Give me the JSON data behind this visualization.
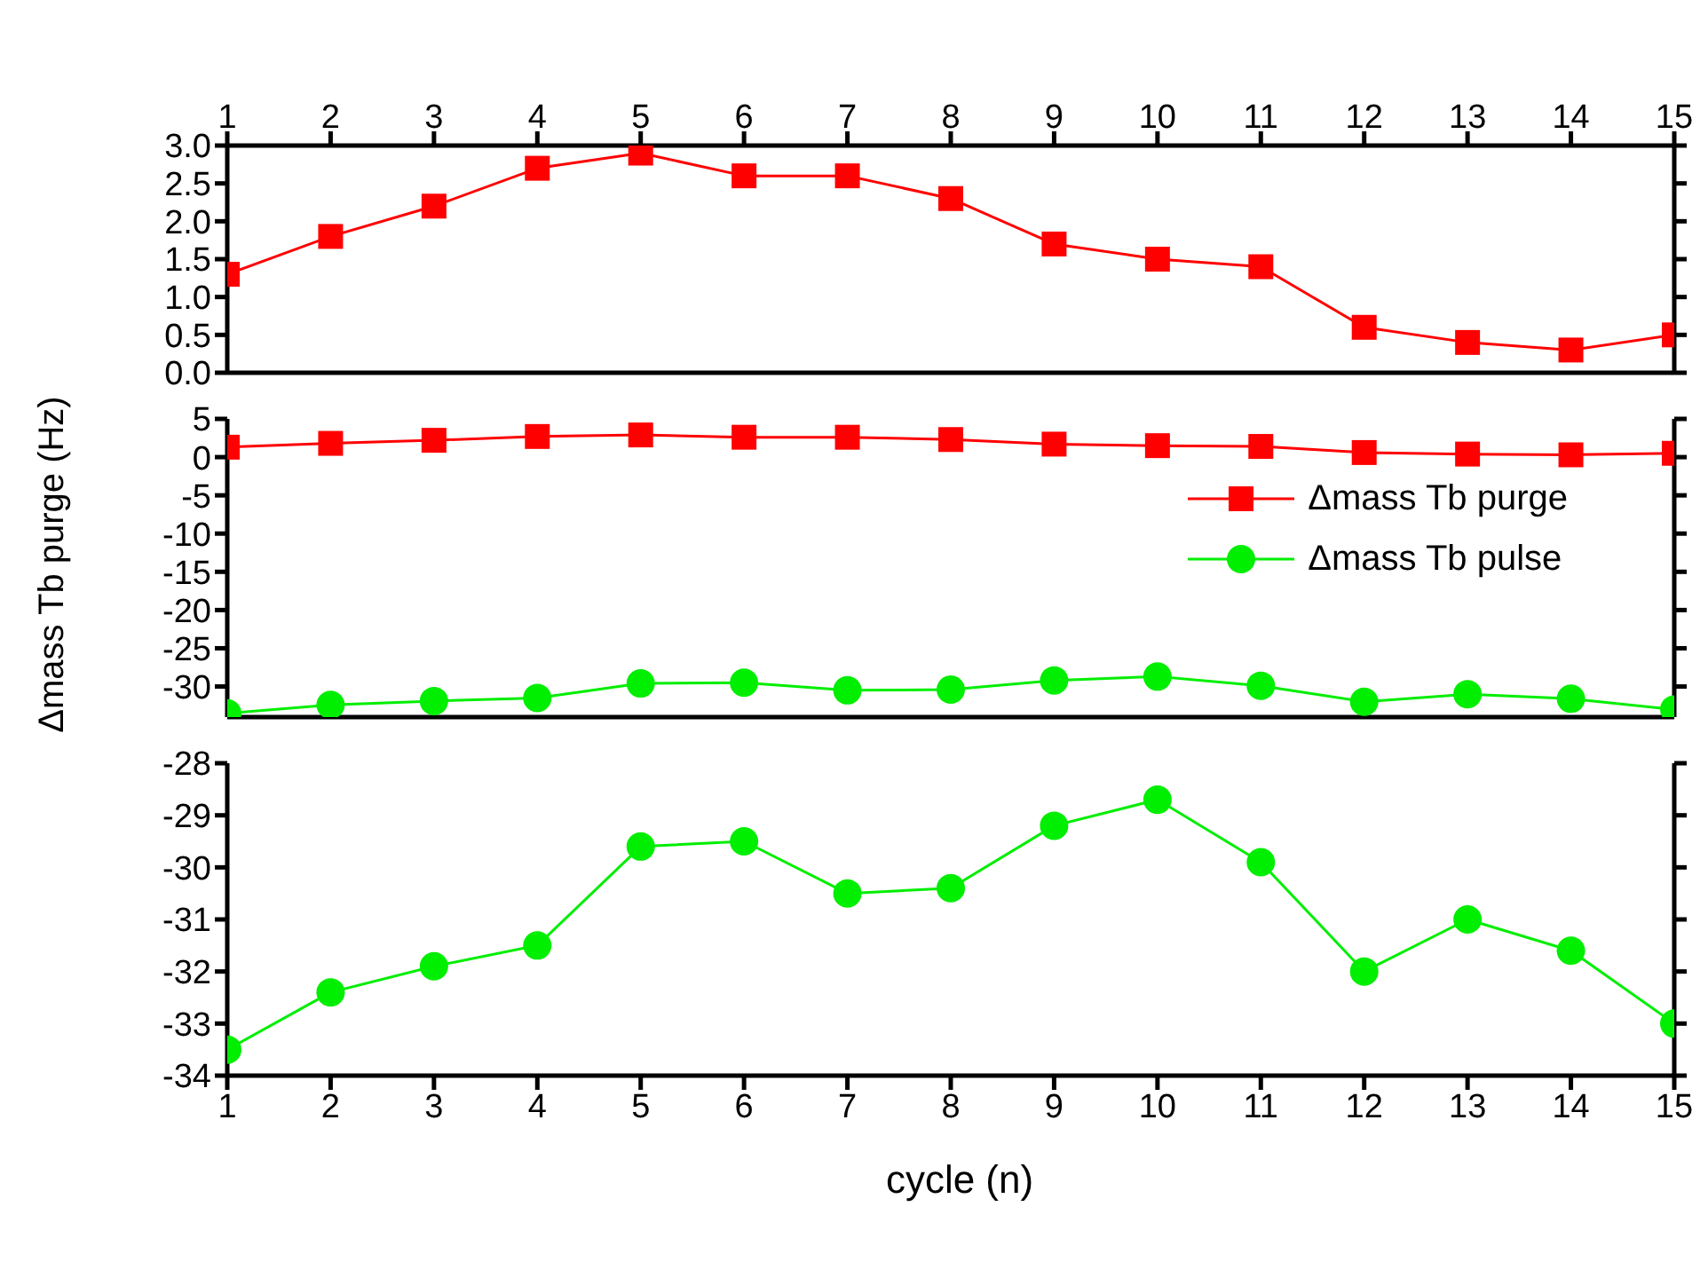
{
  "chart_data": [
    {
      "type": "line",
      "xlim": [
        1,
        15
      ],
      "x2lim": [
        1,
        15
      ],
      "x2ticks": [
        1,
        2,
        3,
        4,
        5,
        6,
        7,
        8,
        9,
        10,
        11,
        12,
        13,
        14,
        15
      ],
      "x": [
        1,
        2,
        3,
        4,
        5,
        6,
        7,
        8,
        9,
        10,
        11,
        12,
        13,
        14,
        15
      ],
      "ylim": [
        0,
        3
      ],
      "yticks": [
        {
          "value": 0,
          "label": "0.0"
        },
        {
          "value": 0.5,
          "label": "0.5"
        },
        {
          "value": 1,
          "label": "1.0"
        },
        {
          "value": 1.5,
          "label": "1.5"
        },
        {
          "value": 2,
          "label": "2.0"
        },
        {
          "value": 2.5,
          "label": "2.5"
        },
        {
          "value": 3,
          "label": "3.0"
        }
      ],
      "grid": false,
      "legend": false,
      "series": [
        {
          "color": "#ff0000",
          "marker": "square",
          "values": [
            1.3,
            1.8,
            2.2,
            2.7,
            2.9,
            2.6,
            2.6,
            2.3,
            1.7,
            1.5,
            1.4,
            0.6,
            0.4,
            0.3,
            0.5
          ]
        }
      ]
    },
    {
      "type": "line",
      "ylabel": "Δmass Tb purge (Hz)",
      "xlim": [
        1,
        15
      ],
      "xticks": [
        1,
        2,
        3,
        4,
        5,
        6,
        7,
        8,
        9,
        10,
        11,
        12,
        13,
        14,
        15
      ],
      "tick_labels": "y",
      "x": [
        1,
        2,
        3,
        4,
        5,
        6,
        7,
        8,
        9,
        10,
        11,
        12,
        13,
        14,
        15
      ],
      "ylim": [
        -34,
        5
      ],
      "yticks": [
        5,
        0,
        -5,
        -10,
        -15,
        -20,
        -25,
        -30
      ],
      "grid": false,
      "legend": "top right",
      "series": [
        {
          "name": "Δmass Tb purge",
          "color": "#ff0000",
          "marker": "square",
          "values": [
            1.3,
            1.8,
            2.2,
            2.7,
            2.9,
            2.6,
            2.6,
            2.3,
            1.7,
            1.5,
            1.4,
            0.6,
            0.4,
            0.3,
            0.5
          ]
        },
        {
          "name": "Δmass Tb pulse",
          "color": "#00ee00",
          "marker": "circle",
          "values": [
            -33.5,
            -32.4,
            -31.9,
            -31.5,
            -29.6,
            -29.5,
            -30.5,
            -30.4,
            -29.2,
            -28.7,
            -29.9,
            -32.0,
            -31.0,
            -31.6,
            -33.0
          ]
        }
      ]
    },
    {
      "type": "line",
      "xlabel": "cycle (n)",
      "xlim": [
        1,
        15
      ],
      "xticks": [
        1,
        2,
        3,
        4,
        5,
        6,
        7,
        8,
        9,
        10,
        11,
        12,
        13,
        14,
        15
      ],
      "x": [
        1,
        2,
        3,
        4,
        5,
        6,
        7,
        8,
        9,
        10,
        11,
        12,
        13,
        14,
        15
      ],
      "ylim": [
        -34,
        -28
      ],
      "yticks": [
        -34,
        -33,
        -32,
        -31,
        -30,
        -29,
        -28
      ],
      "grid": false,
      "legend": false,
      "series": [
        {
          "color": "#00ee00",
          "marker": "circle",
          "values": [
            -33.5,
            -32.4,
            -31.9,
            -31.5,
            -29.6,
            -29.5,
            -30.5,
            -30.4,
            -29.2,
            -28.7,
            -29.9,
            -32.0,
            -31.0,
            -31.6,
            -33.0
          ]
        }
      ]
    }
  ]
}
